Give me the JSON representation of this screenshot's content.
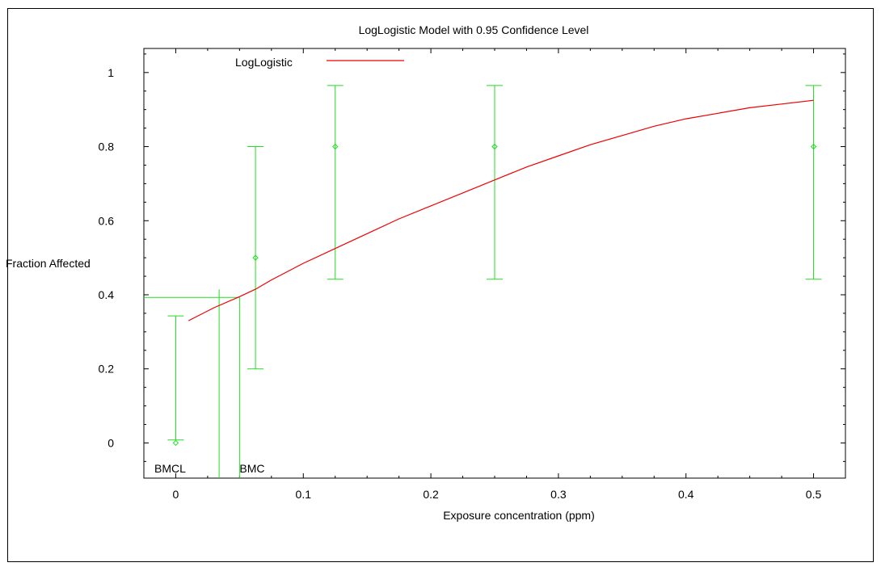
{
  "chart_data": {
    "type": "scatter",
    "title": "LogLogistic Model with 0.95 Confidence Level",
    "xlabel": "Exposure concentration (ppm)",
    "ylabel": "Fraction Affected",
    "xlim": [
      -0.025,
      0.525
    ],
    "ylim": [
      -0.095,
      1.065
    ],
    "xticks": [
      0,
      0.1,
      0.2,
      0.3,
      0.4,
      0.5
    ],
    "xtick_labels": [
      "0",
      "0.1",
      "0.2",
      "0.3",
      "0.4",
      "0.5"
    ],
    "yticks": [
      0,
      0.2,
      0.4,
      0.6,
      0.8,
      1
    ],
    "ytick_labels": [
      "0",
      "0.2",
      "0.4",
      "0.6",
      "0.8",
      "1"
    ],
    "grid": false,
    "legend": {
      "position": "top-left",
      "entries": [
        {
          "name": "LogLogistic",
          "color": "#ee0000"
        }
      ]
    },
    "observed": {
      "color": "#22dd22",
      "points": [
        {
          "x": 0,
          "y": 0,
          "lo": 0.008,
          "hi": 0.343
        },
        {
          "x": 0.0625,
          "y": 0.5,
          "lo": 0.2,
          "hi": 0.8
        },
        {
          "x": 0.125,
          "y": 0.8,
          "lo": 0.442,
          "hi": 0.965
        },
        {
          "x": 0.25,
          "y": 0.8,
          "lo": 0.442,
          "hi": 0.965
        },
        {
          "x": 0.5,
          "y": 0.8,
          "lo": 0.442,
          "hi": 0.965
        }
      ]
    },
    "model_curve": {
      "name": "LogLogistic",
      "color": "#ee0000",
      "x": [
        0.01,
        0.03,
        0.05,
        0.0625,
        0.075,
        0.1,
        0.125,
        0.15,
        0.175,
        0.2,
        0.225,
        0.25,
        0.275,
        0.3,
        0.325,
        0.35,
        0.375,
        0.4,
        0.425,
        0.45,
        0.475,
        0.5
      ],
      "y": [
        0.33,
        0.365,
        0.395,
        0.415,
        0.44,
        0.485,
        0.525,
        0.565,
        0.605,
        0.64,
        0.675,
        0.71,
        0.745,
        0.775,
        0.805,
        0.83,
        0.855,
        0.875,
        0.89,
        0.905,
        0.915,
        0.925
      ]
    },
    "bmd": {
      "bmr_level": 0.393,
      "bmcl": {
        "label": "BMCL",
        "x": 0.034
      },
      "bmc": {
        "label": "BMC",
        "x": 0.05
      }
    }
  }
}
